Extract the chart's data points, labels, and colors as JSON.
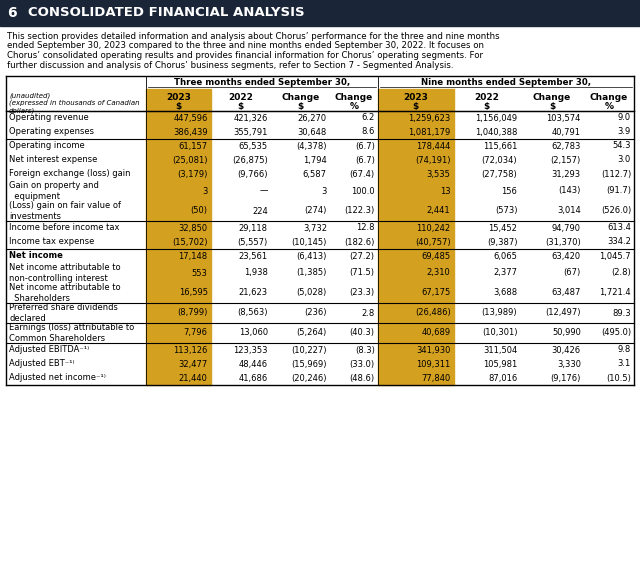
{
  "title_num": "6",
  "title_text": "CONSOLIDATED FINANCIAL ANALYSIS",
  "title_bg": "#1a2638",
  "title_fg": "#ffffff",
  "body_text": "This section provides detailed information and analysis about Chorus’ performance for the three and nine months ended September 30, 2023 compared to the three and nine months ended September 30, 2022. It focuses on Chorus’ consolidated operating results and provides financial information for Chorus’ operating segments. For further discussion and analysis of Chorus’ business segments, refer to Section 7 - Segmented Analysis.",
  "col_group1": "Three months ended September 30,",
  "col_group2": "Nine months ended September 30,",
  "highlight_color": "#d4a020",
  "col_headers_top": [
    "2023",
    "2022",
    "Change",
    "Change",
    "2023",
    "2022",
    "Change",
    "Change"
  ],
  "col_headers_bot": [
    "$",
    "$",
    "$",
    "%",
    "$",
    "$",
    "$",
    "%"
  ],
  "rows": [
    {
      "label": "Operating revenue",
      "vals": [
        "447,596",
        "421,326",
        "26,270",
        "6.2",
        "1,259,623",
        "1,156,049",
        "103,574",
        "9.0"
      ],
      "bold": false,
      "top_border": true,
      "double_line": false
    },
    {
      "label": "Operating expenses",
      "vals": [
        "386,439",
        "355,791",
        "30,648",
        "8.6",
        "1,081,179",
        "1,040,388",
        "40,791",
        "3.9"
      ],
      "bold": false,
      "top_border": false,
      "double_line": false
    },
    {
      "label": "Operating income",
      "vals": [
        "61,157",
        "65,535",
        "(4,378)",
        "(6.7)",
        "178,444",
        "115,661",
        "62,783",
        "54.3"
      ],
      "bold": false,
      "top_border": true,
      "double_line": false
    },
    {
      "label": "Net interest expense",
      "vals": [
        "(25,081)",
        "(26,875)",
        "1,794",
        "(6.7)",
        "(74,191)",
        "(72,034)",
        "(2,157)",
        "3.0"
      ],
      "bold": false,
      "top_border": false,
      "double_line": false
    },
    {
      "label": "Foreign exchange (loss) gain",
      "vals": [
        "(3,179)",
        "(9,766)",
        "6,587",
        "(67.4)",
        "3,535",
        "(27,758)",
        "31,293",
        "(112.7)"
      ],
      "bold": false,
      "top_border": false,
      "double_line": false
    },
    {
      "label": "Gain on property and\n  equipment",
      "vals": [
        "3",
        "—",
        "3",
        "100.0",
        "13",
        "156",
        "(143)",
        "(91.7)"
      ],
      "bold": false,
      "top_border": false,
      "double_line": false
    },
    {
      "label": "(Loss) gain on fair value of\ninvestments",
      "vals": [
        "(50)",
        "224",
        "(274)",
        "(122.3)",
        "2,441",
        "(573)",
        "3,014",
        "(526.0)"
      ],
      "bold": false,
      "top_border": false,
      "double_line": false
    },
    {
      "label": "Income before income tax",
      "vals": [
        "32,850",
        "29,118",
        "3,732",
        "12.8",
        "110,242",
        "15,452",
        "94,790",
        "613.4"
      ],
      "bold": false,
      "top_border": true,
      "double_line": false
    },
    {
      "label": "Income tax expense",
      "vals": [
        "(15,702)",
        "(5,557)",
        "(10,145)",
        "(182.6)",
        "(40,757)",
        "(9,387)",
        "(31,370)",
        "334.2"
      ],
      "bold": false,
      "top_border": false,
      "double_line": false
    },
    {
      "label": "Net income",
      "vals": [
        "17,148",
        "23,561",
        "(6,413)",
        "(27.2)",
        "69,485",
        "6,065",
        "63,420",
        "1,045.7"
      ],
      "bold": true,
      "top_border": true,
      "double_line": false
    },
    {
      "label": "Net income attributable to\nnon-controlling interest",
      "vals": [
        "553",
        "1,938",
        "(1,385)",
        "(71.5)",
        "2,310",
        "2,377",
        "(67)",
        "(2.8)"
      ],
      "bold": false,
      "top_border": false,
      "double_line": false
    },
    {
      "label": "Net income attributable to\n  Shareholders",
      "vals": [
        "16,595",
        "21,623",
        "(5,028)",
        "(23.3)",
        "67,175",
        "3,688",
        "63,487",
        "1,721.4"
      ],
      "bold": false,
      "top_border": false,
      "double_line": false
    },
    {
      "label": "Preferred share dividends\ndeclared",
      "vals": [
        "(8,799)",
        "(8,563)",
        "(236)",
        "2.8",
        "(26,486)",
        "(13,989)",
        "(12,497)",
        "89.3"
      ],
      "bold": false,
      "top_border": true,
      "double_line": false
    },
    {
      "label": "Earnings (loss) attributable to\nCommon Shareholders",
      "vals": [
        "7,796",
        "13,060",
        "(5,264)",
        "(40.3)",
        "40,689",
        "(10,301)",
        "50,990",
        "(495.0)"
      ],
      "bold": false,
      "top_border": true,
      "double_line": false
    },
    {
      "label": "Adjusted EBITDA⁻¹⁾",
      "vals": [
        "113,126",
        "123,353",
        "(10,227)",
        "(8.3)",
        "341,930",
        "311,504",
        "30,426",
        "9.8"
      ],
      "bold": false,
      "top_border": true,
      "double_line": false
    },
    {
      "label": "Adjusted EBT⁻¹⁾",
      "vals": [
        "32,477",
        "48,446",
        "(15,969)",
        "(33.0)",
        "109,311",
        "105,981",
        "3,330",
        "3.1"
      ],
      "bold": false,
      "top_border": false,
      "double_line": false
    },
    {
      "label": "Adjusted net income⁻¹⁾",
      "vals": [
        "21,440",
        "41,686",
        "(20,246)",
        "(48.6)",
        "77,840",
        "87,016",
        "(9,176)",
        "(10.5)"
      ],
      "bold": false,
      "top_border": false,
      "double_line": false
    }
  ]
}
